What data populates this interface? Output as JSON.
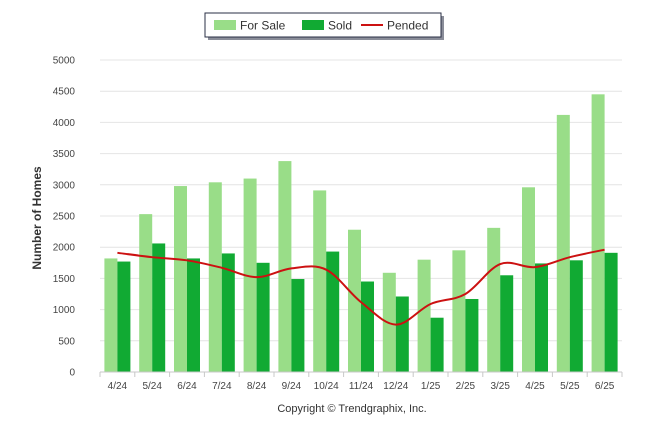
{
  "chart_data": {
    "type": "bar",
    "title": "",
    "xlabel": "",
    "ylabel": "Number of Homes",
    "ylim": [
      0,
      5000
    ],
    "yticks": [
      0,
      500,
      1000,
      1500,
      2000,
      2500,
      3000,
      3500,
      4000,
      4500,
      5000
    ],
    "categories": [
      "4/24",
      "5/24",
      "6/24",
      "7/24",
      "8/24",
      "9/24",
      "10/24",
      "11/24",
      "12/24",
      "1/25",
      "2/25",
      "3/25",
      "4/25",
      "5/25",
      "6/25"
    ],
    "series": [
      {
        "name": "For Sale",
        "type": "bar",
        "color": "#99dd88",
        "values": [
          1820,
          2530,
          2980,
          3040,
          3100,
          3380,
          2910,
          2280,
          1590,
          1800,
          1950,
          2310,
          2960,
          4120,
          4450
        ]
      },
      {
        "name": "Sold",
        "type": "bar",
        "color": "#11aa33",
        "values": [
          1770,
          2060,
          1820,
          1900,
          1750,
          1490,
          1930,
          1450,
          1210,
          870,
          1170,
          1550,
          1740,
          1790,
          1910
        ]
      },
      {
        "name": "Pended",
        "type": "line",
        "color": "#cc1111",
        "values": [
          1910,
          1840,
          1790,
          1670,
          1520,
          1660,
          1640,
          1120,
          760,
          1090,
          1250,
          1730,
          1680,
          1840,
          1960
        ]
      }
    ],
    "grid": true,
    "legend_position": "top-center",
    "footer": "Copyright © Trendgraphix, Inc."
  }
}
